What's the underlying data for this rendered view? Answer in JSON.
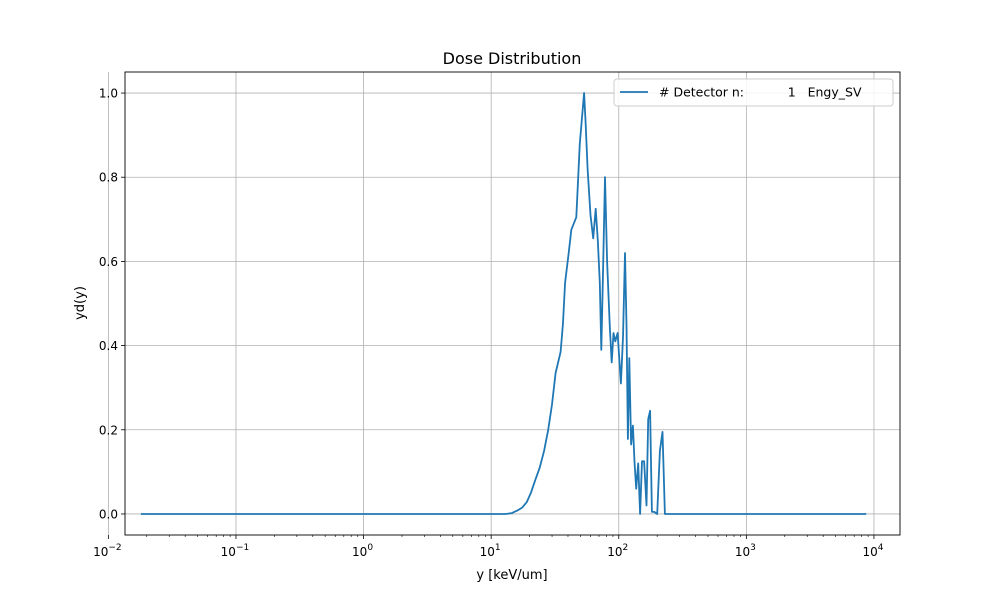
{
  "chart_data": {
    "type": "line",
    "title": "Dose Distribution",
    "xlabel": "y [keV/um]",
    "ylabel": "yd(y)",
    "xscale": "log",
    "xlim": [
      0.0135,
      16000
    ],
    "ylim": [
      -0.05,
      1.05
    ],
    "grid": true,
    "legend_position": "top-right",
    "x_tick_labels": [
      {
        "base": "10",
        "exp": "−2",
        "value": 0.01
      },
      {
        "base": "10",
        "exp": "−1",
        "value": 0.1
      },
      {
        "base": "10",
        "exp": "0",
        "value": 1
      },
      {
        "base": "10",
        "exp": "1",
        "value": 10
      },
      {
        "base": "10",
        "exp": "2",
        "value": 100
      },
      {
        "base": "10",
        "exp": "3",
        "value": 1000
      },
      {
        "base": "10",
        "exp": "4",
        "value": 10000
      }
    ],
    "y_ticks": [
      0.0,
      0.2,
      0.4,
      0.6,
      0.8,
      1.0
    ],
    "y_tick_labels": [
      "0.0",
      "0.2",
      "0.4",
      "0.6",
      "0.8",
      "1.0"
    ],
    "series": [
      {
        "name": "# Detector n:           1   Engy_SV",
        "color": "#1f77b4",
        "points": [
          [
            0.018,
            0.0
          ],
          [
            1.0,
            0.0
          ],
          [
            10.0,
            0.0
          ],
          [
            13.0,
            0.0
          ],
          [
            14.5,
            0.002
          ],
          [
            16.0,
            0.008
          ],
          [
            17.5,
            0.015
          ],
          [
            19.0,
            0.028
          ],
          [
            20.5,
            0.05
          ],
          [
            22.0,
            0.078
          ],
          [
            24.0,
            0.11
          ],
          [
            26.0,
            0.15
          ],
          [
            28.0,
            0.2
          ],
          [
            30.0,
            0.26
          ],
          [
            32.0,
            0.335
          ],
          [
            35.0,
            0.385
          ],
          [
            36.5,
            0.45
          ],
          [
            38.0,
            0.55
          ],
          [
            40.5,
            0.62
          ],
          [
            42.5,
            0.675
          ],
          [
            46.5,
            0.705
          ],
          [
            49.5,
            0.88
          ],
          [
            53.5,
            1.0
          ],
          [
            55.0,
            0.93
          ],
          [
            57.0,
            0.82
          ],
          [
            60.0,
            0.71
          ],
          [
            63.0,
            0.655
          ],
          [
            66.0,
            0.725
          ],
          [
            68.5,
            0.65
          ],
          [
            71.0,
            0.55
          ],
          [
            73.0,
            0.39
          ],
          [
            75.0,
            0.55
          ],
          [
            78.0,
            0.8
          ],
          [
            81.0,
            0.6
          ],
          [
            85.0,
            0.445
          ],
          [
            88.0,
            0.36
          ],
          [
            91.0,
            0.43
          ],
          [
            94.0,
            0.41
          ],
          [
            98.0,
            0.43
          ],
          [
            104.0,
            0.31
          ],
          [
            108.0,
            0.42
          ],
          [
            112.0,
            0.62
          ],
          [
            115.0,
            0.45
          ],
          [
            118.0,
            0.178
          ],
          [
            121.0,
            0.37
          ],
          [
            125.0,
            0.165
          ],
          [
            129.0,
            0.21
          ],
          [
            133.0,
            0.12
          ],
          [
            137.0,
            0.06
          ],
          [
            142.0,
            0.12
          ],
          [
            147.0,
            0.0
          ],
          [
            152.0,
            0.125
          ],
          [
            158.0,
            0.125
          ],
          [
            165.0,
            0.02
          ],
          [
            170.0,
            0.225
          ],
          [
            176.0,
            0.245
          ],
          [
            182.0,
            0.005
          ],
          [
            190.0,
            0.005
          ],
          [
            200.0,
            0.0
          ],
          [
            210.0,
            0.15
          ],
          [
            220.0,
            0.195
          ],
          [
            230.0,
            0.0
          ],
          [
            500.0,
            0.0
          ],
          [
            1000.0,
            0.0
          ],
          [
            8700.0,
            0.0
          ]
        ]
      }
    ]
  }
}
